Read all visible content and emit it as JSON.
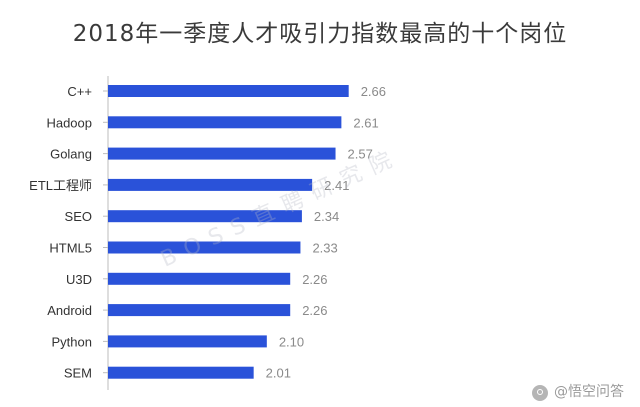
{
  "chart_data": {
    "type": "bar",
    "orientation": "horizontal",
    "title": "2018年一季度人才吸引力指数最高的十个岗位",
    "categories": [
      "C++",
      "Hadoop",
      "Golang",
      "ETL工程师",
      "SEO",
      "HTML5",
      "U3D",
      "Android",
      "Python",
      "SEM"
    ],
    "values": [
      2.66,
      2.61,
      2.57,
      2.41,
      2.34,
      2.33,
      2.26,
      2.26,
      2.1,
      2.01
    ],
    "value_labels": [
      "2.66",
      "2.61",
      "2.57",
      "2.41",
      "2.34",
      "2.33",
      "2.26",
      "2.26",
      "2.10",
      "2.01"
    ],
    "bar_color": "#2a52d9",
    "grid": false,
    "legend": "none"
  },
  "watermark": {
    "diagonal_text": "BOSS直聘研究院",
    "corner_text": "@悟空问答"
  }
}
